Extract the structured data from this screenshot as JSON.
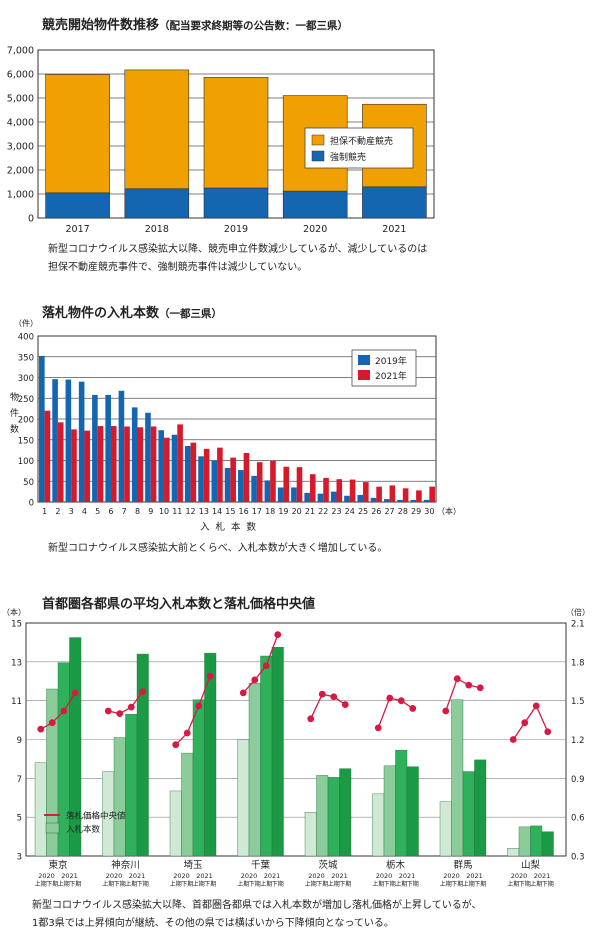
{
  "charts": [
    {
      "title": "競売開始物件数推移",
      "subtitle": "（配当要求終期等の公告数：一都三県）",
      "note_lines": [
        "新型コロナウイルス感染拡大以降、競売申立件数減少しているが、減少しているのは",
        "担保不動産競売事件で、強制競売事件は減少していない。"
      ]
    },
    {
      "title": "落札物件の入札本数",
      "subtitle": "（一都三県）",
      "ylabel_unit": "（件）",
      "ylabel": "物件数",
      "xlabel": "入札本数",
      "xlabel_unit": "（本）",
      "note_lines": [
        "新型コロナウイルス感染拡大前とくらべ、入札本数が大きく増加している。"
      ]
    },
    {
      "title": "首都圏各都県の平均入札本数と落札価格中央値",
      "left_unit": "（本）",
      "right_unit": "（倍）",
      "note_lines": [
        "新型コロナウイルス感染拡大以降、首都圏各都県では入札本数が増加し落札価格が上昇しているが、",
        "1都3県では上昇傾向が継続、その他の県では横ばいから下降傾向となっている。"
      ]
    }
  ],
  "chart_data": [
    {
      "type": "bar",
      "stacked": true,
      "categories": [
        "2017",
        "2018",
        "2019",
        "2020",
        "2021"
      ],
      "series": [
        {
          "name": "強制競売",
          "values": [
            1050,
            1220,
            1250,
            1120,
            1300
          ],
          "color": "#1466b0"
        },
        {
          "name": "担保不動産競売",
          "values": [
            4930,
            4950,
            4610,
            3980,
            3440
          ],
          "color": "#f0a000"
        }
      ],
      "ylim": [
        0,
        7000
      ],
      "yticks": [
        "0",
        "1,000",
        "2,000",
        "3,000",
        "4,000",
        "5,000",
        "6,000",
        "7,000"
      ],
      "legend_position": "right"
    },
    {
      "type": "bar",
      "categories": [
        "1",
        "2",
        "3",
        "4",
        "5",
        "6",
        "7",
        "8",
        "9",
        "10",
        "11",
        "12",
        "13",
        "14",
        "15",
        "16",
        "17",
        "18",
        "19",
        "20",
        "21",
        "22",
        "23",
        "24",
        "25",
        "26",
        "27",
        "28",
        "29",
        "30"
      ],
      "series": [
        {
          "name": "2019年",
          "color": "#1466b0",
          "values": [
            352,
            296,
            295,
            290,
            258,
            258,
            268,
            228,
            215,
            173,
            162,
            135,
            110,
            100,
            82,
            77,
            63,
            52,
            35,
            35,
            22,
            20,
            25,
            15,
            17,
            10,
            7,
            5,
            5,
            5
          ]
        },
        {
          "name": "2021年",
          "color": "#d61a2c",
          "values": [
            220,
            192,
            175,
            172,
            183,
            183,
            182,
            180,
            182,
            155,
            187,
            143,
            128,
            131,
            107,
            118,
            96,
            99,
            85,
            84,
            67,
            58,
            55,
            54,
            48,
            37,
            40,
            33,
            28,
            37
          ]
        }
      ],
      "ylim": [
        0,
        400
      ],
      "yticks": [
        "0",
        "50",
        "100",
        "150",
        "200",
        "250",
        "300",
        "350",
        "400"
      ],
      "legend_position": "top-right"
    },
    {
      "type": "bar",
      "categories": [
        "東京",
        "神奈川",
        "埼玉",
        "千葉",
        "茨城",
        "栃木",
        "群馬",
        "山梨"
      ],
      "period_labels": [
        "上期",
        "下期",
        "上期",
        "下期"
      ],
      "year_labels": [
        "2020",
        "2021"
      ],
      "bar_series": {
        "name": "入札本数",
        "colors": [
          "#cfe9d4",
          "#8ccc9b",
          "#2fb15c",
          "#1b9a45"
        ],
        "values": [
          [
            7.8,
            11.6,
            12.95,
            14.25
          ],
          [
            7.35,
            9.1,
            10.3,
            13.4
          ],
          [
            6.35,
            8.3,
            11.05,
            13.45
          ],
          [
            9.0,
            11.9,
            13.3,
            13.75
          ],
          [
            5.25,
            7.15,
            7.05,
            7.5
          ],
          [
            6.2,
            7.65,
            8.45,
            7.6
          ],
          [
            5.8,
            11.05,
            7.35,
            7.95
          ],
          [
            3.4,
            4.5,
            4.55,
            4.25
          ]
        ]
      },
      "line_series": {
        "name": "落札価格中央値",
        "color": "#d61a44",
        "values": [
          [
            1.28,
            1.33,
            1.42,
            1.56
          ],
          [
            1.42,
            1.4,
            1.45,
            1.57
          ],
          [
            1.16,
            1.25,
            1.46,
            1.69
          ],
          [
            1.56,
            1.66,
            1.77,
            2.01
          ],
          [
            1.36,
            1.55,
            1.53,
            1.47
          ],
          [
            1.29,
            1.52,
            1.5,
            1.44
          ],
          [
            1.42,
            1.67,
            1.62,
            1.6
          ],
          [
            1.2,
            1.33,
            1.46,
            1.26
          ]
        ]
      },
      "ylim_left": [
        3,
        15
      ],
      "yticks_left": [
        "3",
        "5",
        "7",
        "9",
        "11",
        "13",
        "15"
      ],
      "ylim_right": [
        0.3,
        2.1
      ],
      "yticks_right": [
        "0.3",
        "0.6",
        "0.9",
        "1.2",
        "1.5",
        "1.8",
        "2.1"
      ],
      "legend_position": "bottom-left"
    }
  ]
}
